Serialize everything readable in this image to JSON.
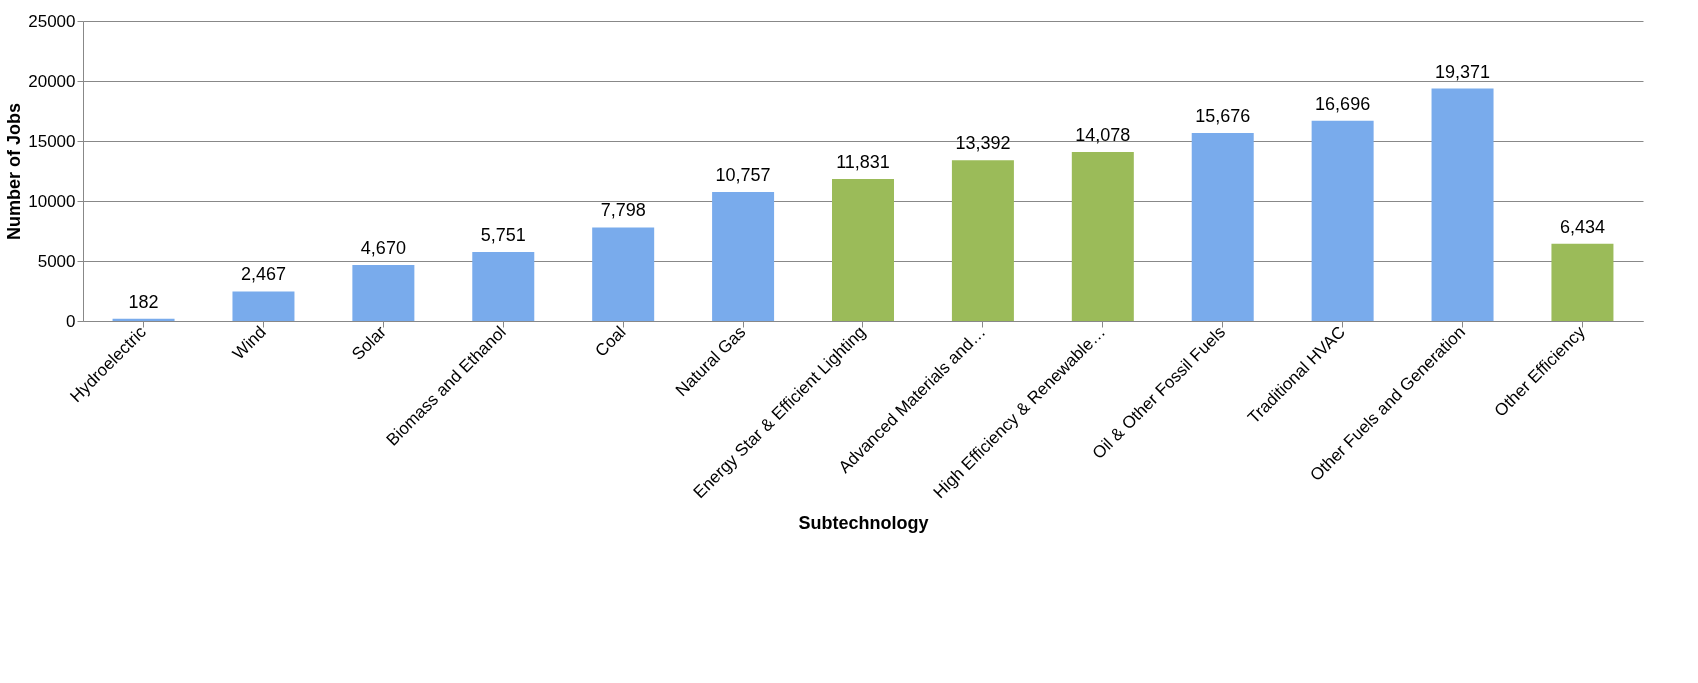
{
  "chart_data": {
    "type": "bar",
    "xlabel": "Subtechnology",
    "ylabel": "Number of Jobs",
    "categories": [
      "Hydroelectric",
      "Wind",
      "Solar",
      "Biomass and Ethanol",
      "Coal",
      "Natural Gas",
      "Energy Star & Efficient Lighting",
      "Advanced Materials and…",
      "High Efficiency & Renewable…",
      "Oil & Other Fossil Fuels",
      "Traditional HVAC",
      "Other Fuels and Generation",
      "Other Efficiency"
    ],
    "values": [
      182,
      2467,
      4670,
      5751,
      7798,
      10757,
      11831,
      13392,
      14078,
      15676,
      16696,
      19371,
      6434
    ],
    "value_labels": [
      "182",
      "2,467",
      "4,670",
      "5,751",
      "7,798",
      "10,757",
      "11,831",
      "13,392",
      "14,078",
      "15,676",
      "16,696",
      "19,371",
      "6,434"
    ],
    "colors": [
      "#79abec",
      "#79abec",
      "#79abec",
      "#79abec",
      "#79abec",
      "#79abec",
      "#9bbb59",
      "#9bbb59",
      "#9bbb59",
      "#79abec",
      "#79abec",
      "#79abec",
      "#9bbb59"
    ],
    "ylim": [
      0,
      25000
    ],
    "yticks": [
      0,
      5000,
      10000,
      15000,
      20000,
      25000
    ],
    "grid": "y",
    "legend": false
  }
}
